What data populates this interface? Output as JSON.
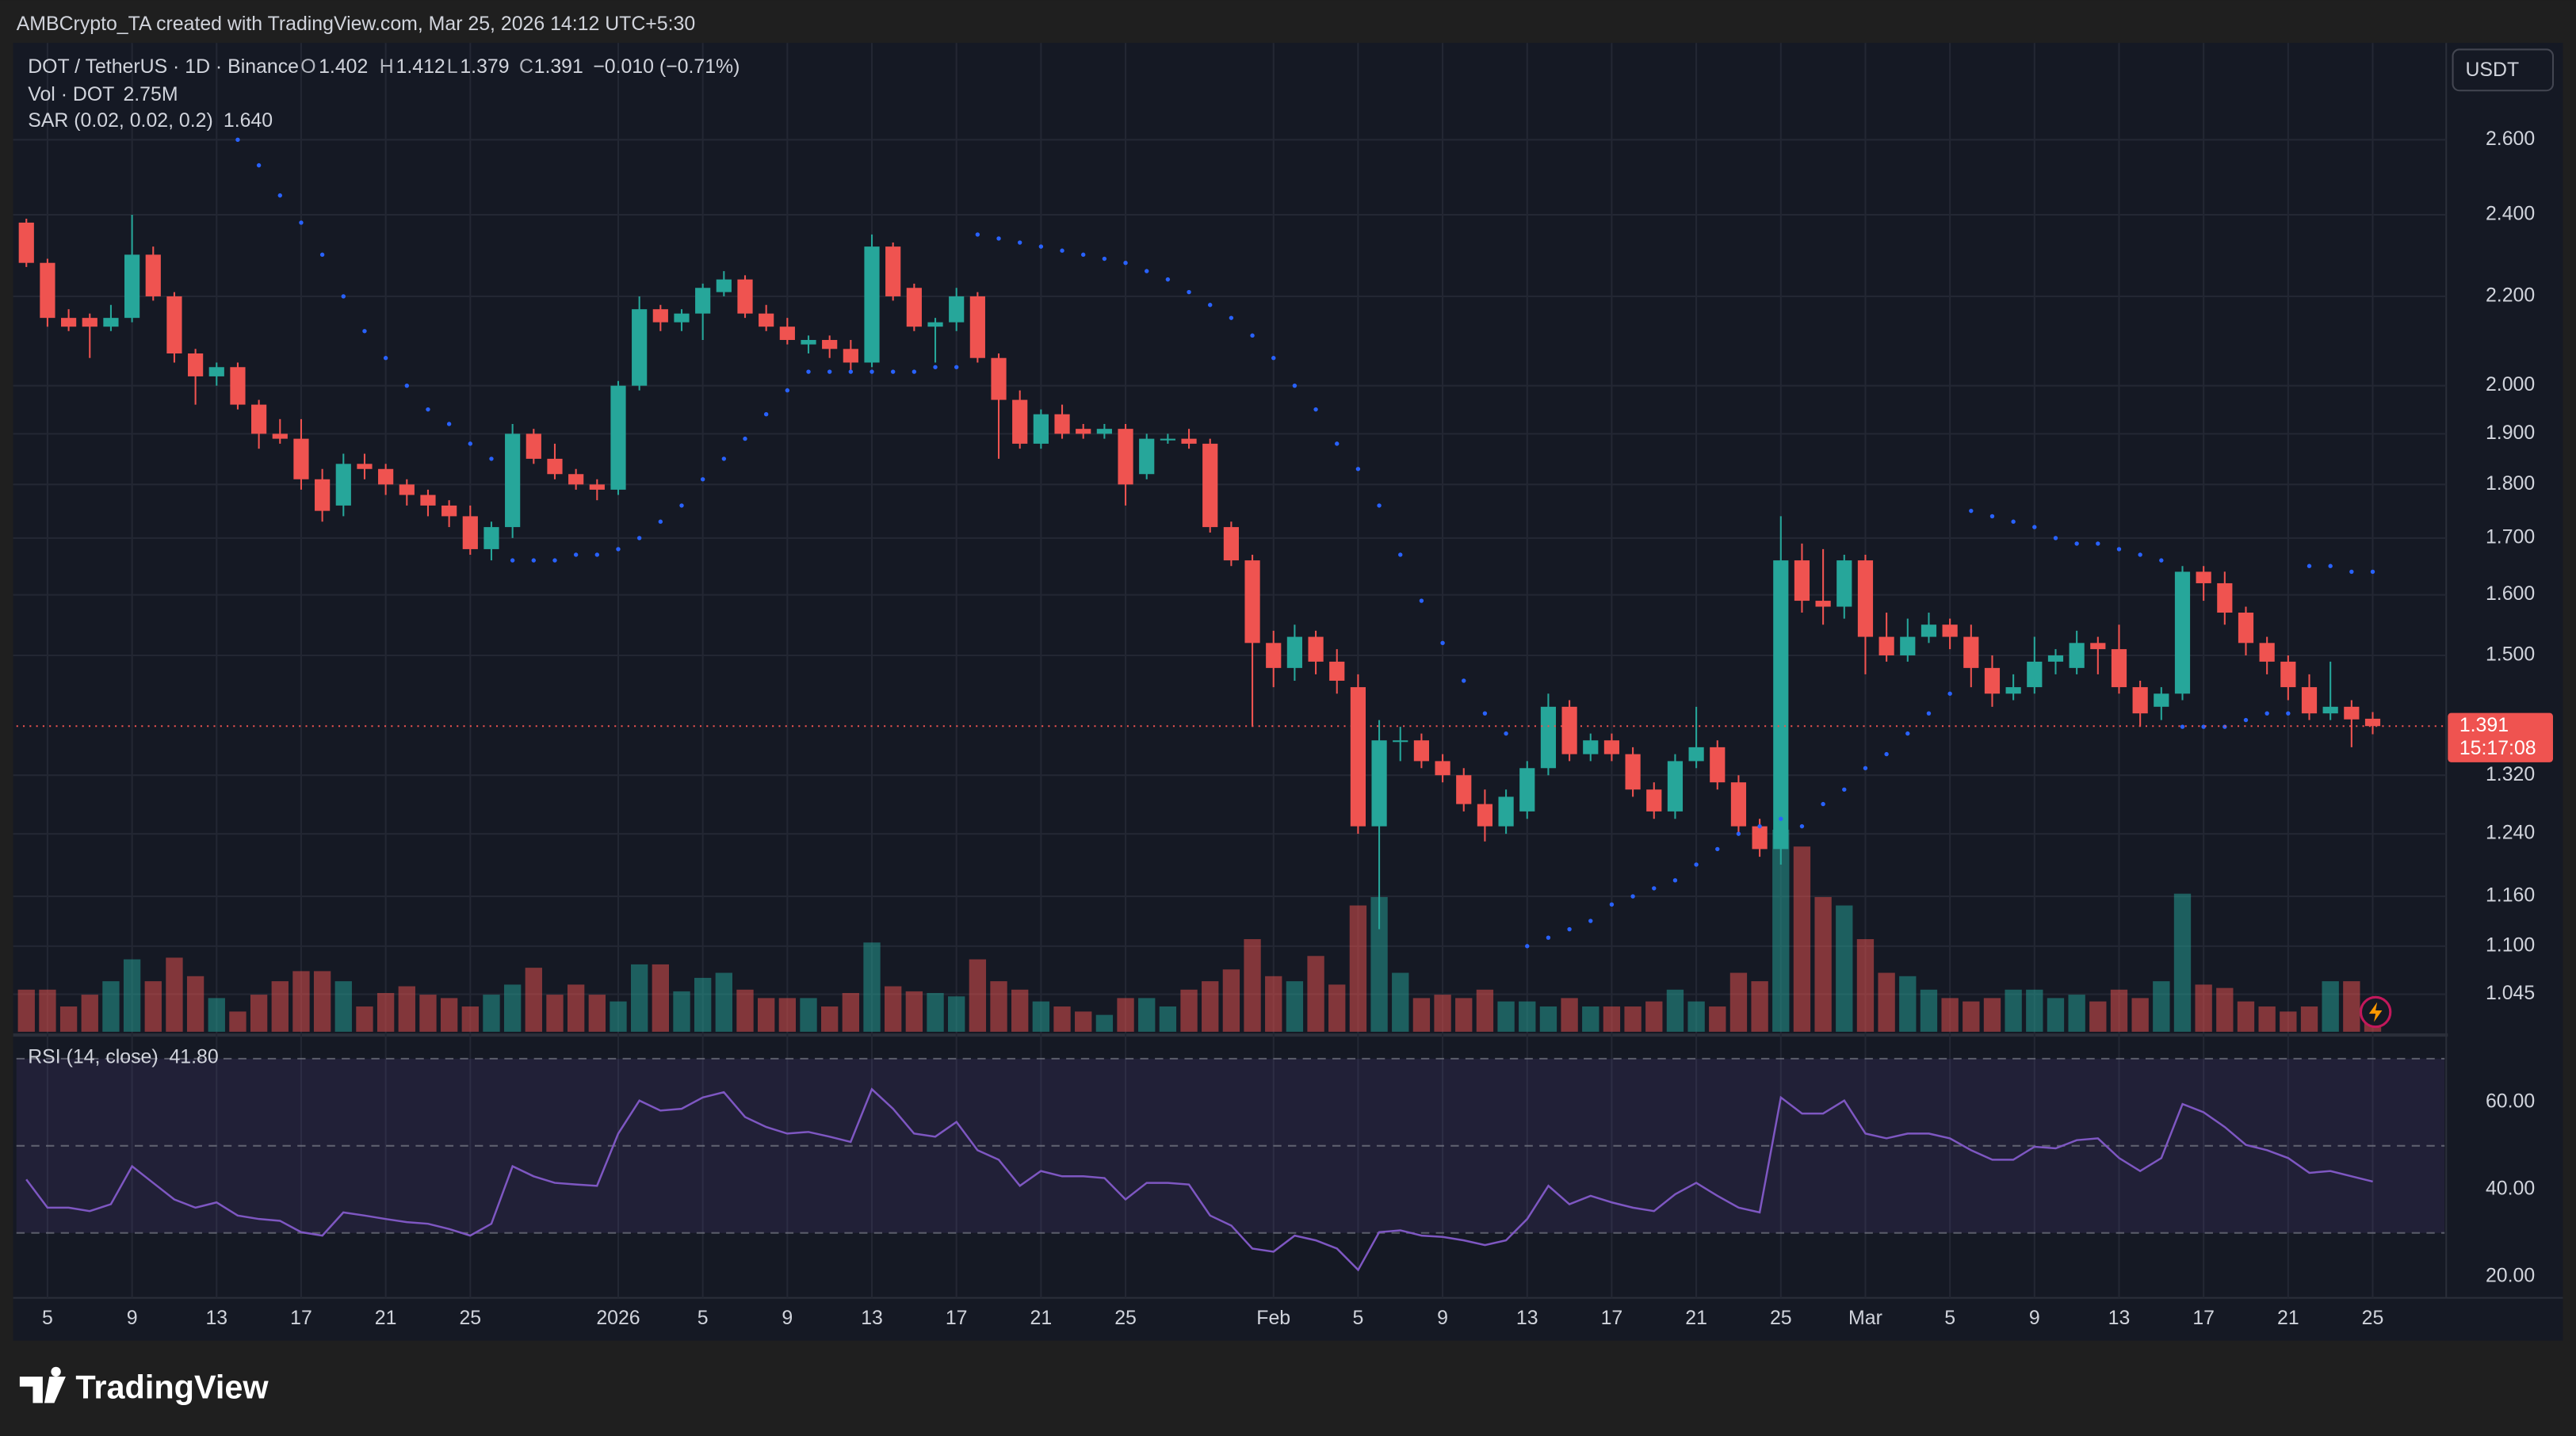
{
  "header": {
    "attribution": "AMBCrypto_TA created with TradingView.com, Mar 25, 2026 14:12 UTC+5:30",
    "currency": "USDT",
    "brand": "TradingView"
  },
  "chart_data": {
    "type": "candlestick",
    "title": "DOT / TetherUS · 1D · Binance",
    "ohlc_labels": [
      "O",
      "H",
      "L",
      "C"
    ],
    "change_label": "−0.010 (−0.71%)",
    "open": [
      2.38,
      2.28,
      2.15,
      2.15,
      2.13,
      2.15,
      2.3,
      2.2,
      2.07,
      2.02,
      2.04,
      1.96,
      1.9,
      1.89,
      1.81,
      1.76,
      1.84,
      1.83,
      1.8,
      1.78,
      1.76,
      1.74,
      1.68,
      1.72,
      1.9,
      1.85,
      1.82,
      1.8,
      1.79,
      2.0,
      2.17,
      2.14,
      2.16,
      2.21,
      2.24,
      2.16,
      2.13,
      2.09,
      2.1,
      2.08,
      2.05,
      2.32,
      2.22,
      2.13,
      2.14,
      2.2,
      2.06,
      1.97,
      1.88,
      1.94,
      1.91,
      1.9,
      1.91,
      1.82,
      1.89,
      1.89,
      1.88,
      1.72,
      1.66,
      1.52,
      1.48,
      1.53,
      1.49,
      1.45,
      1.25,
      1.37,
      1.37,
      1.34,
      1.32,
      1.28,
      1.25,
      1.27,
      1.33,
      1.42,
      1.35,
      1.37,
      1.35,
      1.3,
      1.27,
      1.34,
      1.36,
      1.31,
      1.25,
      1.22,
      1.66,
      1.59,
      1.58,
      1.66,
      1.53,
      1.5,
      1.53,
      1.55,
      1.53,
      1.48,
      1.44,
      1.45,
      1.49,
      1.48,
      1.52,
      1.51,
      1.45,
      1.42,
      1.44,
      1.64,
      1.62,
      1.57,
      1.52,
      1.49,
      1.45,
      1.41,
      1.42,
      1.402
    ],
    "high": [
      2.39,
      2.29,
      2.17,
      2.16,
      2.18,
      2.4,
      2.32,
      2.21,
      2.08,
      2.05,
      2.05,
      1.97,
      1.93,
      1.93,
      1.83,
      1.86,
      1.86,
      1.84,
      1.81,
      1.79,
      1.77,
      1.76,
      1.73,
      1.92,
      1.91,
      1.88,
      1.83,
      1.81,
      2.01,
      2.2,
      2.18,
      2.17,
      2.23,
      2.26,
      2.25,
      2.18,
      2.15,
      2.11,
      2.11,
      2.1,
      2.35,
      2.33,
      2.23,
      2.15,
      2.22,
      2.21,
      2.07,
      1.99,
      1.95,
      1.96,
      1.92,
      1.92,
      1.92,
      1.9,
      1.9,
      1.91,
      1.89,
      1.73,
      1.67,
      1.54,
      1.55,
      1.54,
      1.51,
      1.47,
      1.4,
      1.39,
      1.38,
      1.35,
      1.33,
      1.3,
      1.3,
      1.34,
      1.44,
      1.43,
      1.38,
      1.38,
      1.36,
      1.31,
      1.35,
      1.42,
      1.37,
      1.32,
      1.26,
      1.74,
      1.69,
      1.68,
      1.67,
      1.67,
      1.57,
      1.56,
      1.57,
      1.56,
      1.55,
      1.5,
      1.47,
      1.53,
      1.51,
      1.54,
      1.53,
      1.55,
      1.46,
      1.45,
      1.65,
      1.65,
      1.64,
      1.58,
      1.53,
      1.5,
      1.47,
      1.49,
      1.43,
      1.412
    ],
    "low": [
      2.27,
      2.13,
      2.12,
      2.06,
      2.12,
      2.14,
      2.19,
      2.05,
      1.96,
      2.0,
      1.95,
      1.87,
      1.88,
      1.79,
      1.73,
      1.74,
      1.81,
      1.78,
      1.76,
      1.74,
      1.72,
      1.67,
      1.66,
      1.7,
      1.84,
      1.81,
      1.79,
      1.77,
      1.78,
      1.99,
      2.12,
      2.12,
      2.1,
      2.2,
      2.15,
      2.12,
      2.09,
      2.07,
      2.06,
      2.03,
      2.04,
      2.19,
      2.12,
      2.05,
      2.12,
      2.05,
      1.85,
      1.87,
      1.87,
      1.89,
      1.89,
      1.89,
      1.76,
      1.81,
      1.88,
      1.87,
      1.71,
      1.65,
      1.39,
      1.45,
      1.46,
      1.47,
      1.44,
      1.24,
      1.12,
      1.34,
      1.33,
      1.31,
      1.27,
      1.23,
      1.24,
      1.26,
      1.32,
      1.34,
      1.34,
      1.34,
      1.29,
      1.26,
      1.26,
      1.33,
      1.3,
      1.24,
      1.21,
      1.2,
      1.57,
      1.55,
      1.56,
      1.47,
      1.49,
      1.49,
      1.52,
      1.51,
      1.45,
      1.42,
      1.43,
      1.44,
      1.47,
      1.47,
      1.47,
      1.44,
      1.39,
      1.4,
      1.43,
      1.59,
      1.55,
      1.5,
      1.47,
      1.43,
      1.4,
      1.4,
      1.36,
      1.379
    ],
    "close": [
      2.28,
      2.15,
      2.13,
      2.13,
      2.15,
      2.3,
      2.2,
      2.07,
      2.02,
      2.04,
      1.96,
      1.9,
      1.89,
      1.81,
      1.75,
      1.84,
      1.83,
      1.8,
      1.78,
      1.76,
      1.74,
      1.68,
      1.72,
      1.9,
      1.85,
      1.82,
      1.8,
      1.79,
      2.0,
      2.17,
      2.14,
      2.16,
      2.22,
      2.24,
      2.16,
      2.13,
      2.1,
      2.1,
      2.08,
      2.05,
      2.32,
      2.2,
      2.13,
      2.14,
      2.2,
      2.06,
      1.97,
      1.88,
      1.94,
      1.9,
      1.9,
      1.91,
      1.8,
      1.89,
      1.89,
      1.88,
      1.72,
      1.66,
      1.52,
      1.48,
      1.53,
      1.49,
      1.46,
      1.25,
      1.37,
      1.37,
      1.34,
      1.32,
      1.28,
      1.25,
      1.29,
      1.33,
      1.42,
      1.35,
      1.37,
      1.35,
      1.3,
      1.27,
      1.34,
      1.36,
      1.31,
      1.25,
      1.22,
      1.66,
      1.59,
      1.58,
      1.66,
      1.53,
      1.5,
      1.53,
      1.55,
      1.53,
      1.48,
      1.44,
      1.45,
      1.49,
      1.5,
      1.52,
      1.51,
      1.45,
      1.41,
      1.44,
      1.64,
      1.62,
      1.57,
      1.52,
      1.49,
      1.45,
      1.41,
      1.42,
      1.401,
      1.391
    ],
    "volume_title": "Vol · DOT",
    "volume_last_label": "2.75M",
    "volume": [
      5,
      5,
      3,
      4.4,
      6,
      8.6,
      6,
      8.8,
      6.6,
      4,
      2.4,
      4.4,
      6,
      7.2,
      7.2,
      6,
      3,
      4.6,
      5.4,
      4.4,
      4,
      3,
      4.4,
      5.6,
      7.6,
      4.4,
      5.6,
      4.4,
      3.6,
      8,
      8,
      4.8,
      6.4,
      7,
      5,
      4,
      4,
      4,
      3,
      4.6,
      10.6,
      5.4,
      4.8,
      4.6,
      4.2,
      8.6,
      6,
      5,
      3.6,
      3,
      2.4,
      2,
      4,
      4,
      3,
      5,
      6,
      7.4,
      11,
      6.6,
      6,
      9,
      5.6,
      15,
      16,
      7,
      4,
      4.4,
      4,
      5,
      3.6,
      3.6,
      3,
      4,
      3,
      3,
      3,
      3.6,
      5,
      3.6,
      3,
      7,
      6,
      24,
      22,
      16,
      15,
      11,
      7,
      6.6,
      5,
      4,
      3.6,
      4,
      5,
      5,
      4,
      4.4,
      3.6,
      5,
      4,
      6,
      16.4,
      5.6,
      5.2,
      3.6,
      3,
      2.4,
      3,
      6,
      6,
      2.75
    ],
    "sar_title": "SAR (0.02, 0.02, 0.2)",
    "sar_last_label": "1.640",
    "sar": [
      null,
      null,
      null,
      null,
      null,
      null,
      null,
      null,
      null,
      null,
      2.6,
      2.53,
      2.45,
      2.38,
      2.3,
      2.2,
      2.12,
      2.06,
      2.0,
      1.95,
      1.92,
      1.88,
      1.85,
      1.66,
      1.66,
      1.66,
      1.67,
      1.67,
      1.68,
      1.7,
      1.73,
      1.76,
      1.81,
      1.85,
      1.89,
      1.94,
      1.99,
      2.03,
      2.03,
      2.03,
      2.03,
      2.03,
      2.03,
      2.04,
      2.04,
      2.35,
      2.34,
      2.33,
      2.32,
      2.31,
      2.3,
      2.29,
      2.28,
      2.26,
      2.24,
      2.21,
      2.18,
      2.15,
      2.11,
      2.06,
      2.0,
      1.95,
      1.88,
      1.83,
      1.76,
      1.67,
      1.59,
      1.52,
      1.46,
      1.41,
      1.38,
      1.1,
      1.11,
      1.12,
      1.13,
      1.15,
      1.16,
      1.17,
      1.18,
      1.2,
      1.22,
      1.24,
      1.25,
      1.26,
      1.25,
      1.28,
      1.3,
      1.33,
      1.35,
      1.38,
      1.41,
      1.44,
      1.75,
      1.74,
      1.73,
      1.72,
      1.7,
      1.69,
      1.69,
      1.68,
      1.67,
      1.66,
      1.39,
      1.39,
      1.39,
      1.4,
      1.41,
      1.41,
      1.65,
      1.65,
      1.64,
      1.64
    ],
    "rsi_title": "RSI (14, close)",
    "rsi_last_label": "41.80",
    "rsi": [
      42.3,
      35.8,
      35.8,
      35,
      36.6,
      45.3,
      41.5,
      37.7,
      35.8,
      37,
      34,
      33.2,
      32.8,
      30.2,
      29.4,
      34.7,
      34,
      33.2,
      32.5,
      32.1,
      30.9,
      29.4,
      32.1,
      45.3,
      43,
      41.5,
      41.1,
      40.8,
      52.8,
      60.4,
      58.1,
      58.5,
      61.1,
      62.3,
      56.6,
      54.3,
      52.8,
      53.2,
      52.1,
      50.9,
      63,
      58.5,
      52.8,
      52.1,
      55.5,
      49,
      46.8,
      40.8,
      44.2,
      43,
      43,
      42.6,
      37.7,
      41.5,
      41.5,
      41.1,
      34,
      31.7,
      26.4,
      25.7,
      29.4,
      28.3,
      26.4,
      21.5,
      30.2,
      30.6,
      29.4,
      29.1,
      28.3,
      27.2,
      28.3,
      33.2,
      40.8,
      36.6,
      38.5,
      37,
      35.8,
      35,
      38.9,
      41.5,
      38.5,
      35.8,
      34.7,
      61.1,
      57.4,
      57.4,
      60.4,
      52.8,
      51.7,
      52.8,
      52.8,
      51.7,
      49,
      46.8,
      46.8,
      49.8,
      49.4,
      51.3,
      51.7,
      47.2,
      44.2,
      47.2,
      59.6,
      57.7,
      54.3,
      50.2,
      49,
      47.2,
      43.8,
      44.2,
      43,
      41.8
    ],
    "rsi_bands": [
      70,
      50,
      30
    ],
    "rsi_ylim": [
      15.1,
      74.3
    ],
    "rsi_yticks": [
      {
        "value": 60,
        "label": "60.00"
      },
      {
        "value": 40,
        "label": "40.00"
      },
      {
        "value": 20,
        "label": "20.00"
      }
    ],
    "countdown": "15:17:08",
    "log_scale": true,
    "ylim": [
      1.004,
      2.883
    ],
    "yticks": [
      {
        "value": 2.6,
        "label": "2.600"
      },
      {
        "value": 2.4,
        "label": "2.400"
      },
      {
        "value": 2.2,
        "label": "2.200"
      },
      {
        "value": 2,
        "label": "2.000"
      },
      {
        "value": 1.9,
        "label": "1.900"
      },
      {
        "value": 1.8,
        "label": "1.800"
      },
      {
        "value": 1.7,
        "label": "1.700"
      },
      {
        "value": 1.6,
        "label": "1.600"
      },
      {
        "value": 1.5,
        "label": "1.500"
      },
      {
        "value": 1.32,
        "label": "1.320"
      },
      {
        "value": 1.24,
        "label": "1.240"
      },
      {
        "value": 1.16,
        "label": "1.160"
      },
      {
        "value": 1.1,
        "label": "1.100"
      },
      {
        "value": 1.045,
        "label": "1.045"
      }
    ],
    "xlim": [
      -0.47,
      114.4
    ],
    "xticks": [
      {
        "value": 1,
        "label": "5"
      },
      {
        "value": 5,
        "label": "9"
      },
      {
        "value": 9,
        "label": "13"
      },
      {
        "value": 13,
        "label": "17"
      },
      {
        "value": 17,
        "label": "21"
      },
      {
        "value": 21,
        "label": "25"
      },
      {
        "value": 28,
        "label": "2026"
      },
      {
        "value": 32,
        "label": "5"
      },
      {
        "value": 36,
        "label": "9"
      },
      {
        "value": 40,
        "label": "13"
      },
      {
        "value": 44,
        "label": "17"
      },
      {
        "value": 48,
        "label": "21"
      },
      {
        "value": 52,
        "label": "25"
      },
      {
        "value": 59,
        "label": "Feb"
      },
      {
        "value": 63,
        "label": "5"
      },
      {
        "value": 67,
        "label": "9"
      },
      {
        "value": 71,
        "label": "13"
      },
      {
        "value": 75,
        "label": "17"
      },
      {
        "value": 79,
        "label": "21"
      },
      {
        "value": 83,
        "label": "25"
      },
      {
        "value": 87,
        "label": "Mar"
      },
      {
        "value": 91,
        "label": "5"
      },
      {
        "value": 95,
        "label": "9"
      },
      {
        "value": 99,
        "label": "13"
      },
      {
        "value": 103,
        "label": "17"
      },
      {
        "value": 107,
        "label": "21"
      },
      {
        "value": 111,
        "label": "25"
      }
    ],
    "grid": true,
    "colors": {
      "up": "#26a69a",
      "down": "#ef5350",
      "sar": "#2962ff",
      "rsi": "#7e57c2"
    }
  }
}
